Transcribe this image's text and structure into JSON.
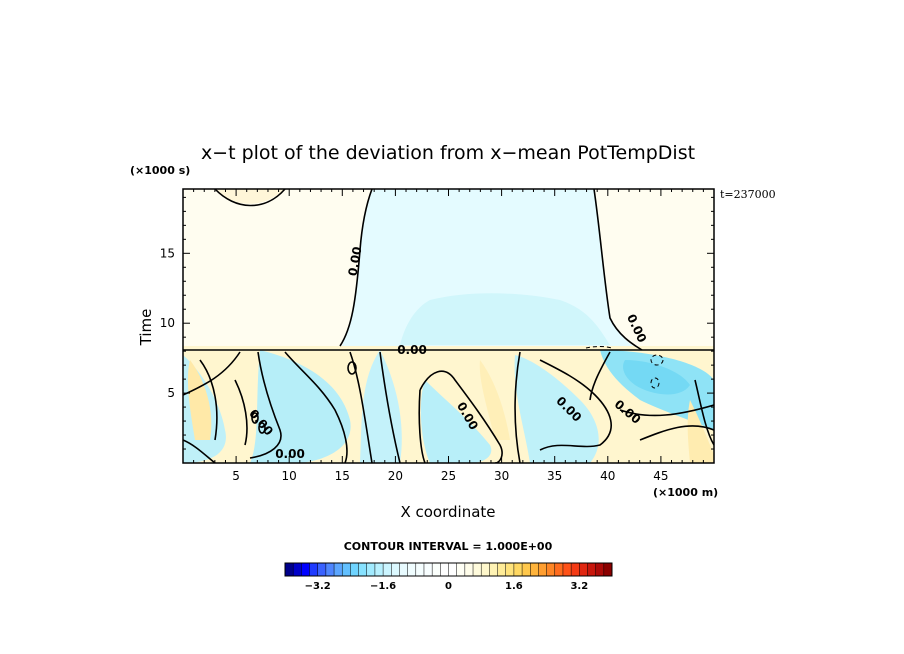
{
  "chart_data": {
    "type": "heatmap",
    "title": "x−t plot of the deviation from x−mean PotTempDist",
    "xlabel": "X coordinate",
    "ylabel": "Time",
    "x_unit": "(×1000 m)",
    "y_unit": "(×1000 s)",
    "time_stamp": "t=237000",
    "xlim": [
      0,
      50
    ],
    "ylim": [
      0,
      19.6
    ],
    "x_ticks": [
      5,
      10,
      15,
      20,
      25,
      30,
      35,
      40,
      45
    ],
    "y_ticks": [
      5,
      10,
      15
    ],
    "contour_interval_text": "CONTOUR INTERVAL = 1.000E+00",
    "contour_label": "0.00",
    "colorbar": {
      "range": [
        -4,
        4
      ],
      "n_levels": 40,
      "tick_values": [
        -3.2,
        -1.6,
        0,
        1.6,
        3.2
      ],
      "tick_labels": [
        "−3.2",
        "−1.6",
        "0",
        "1.6",
        "3.2"
      ],
      "colors": [
        "#00008b",
        "#0000c8",
        "#0000ff",
        "#1f3bff",
        "#3a62ff",
        "#4f86ff",
        "#5ca6ff",
        "#62c0ff",
        "#6fd4ff",
        "#87e2ff",
        "#a2ebff",
        "#b8f1ff",
        "#cbf5ff",
        "#dcf9ff",
        "#e8fbff",
        "#f0fdff",
        "#f5feff",
        "#f8feff",
        "#fbfffc",
        "#ffffff",
        "#ffffff",
        "#fffff5",
        "#fffdea",
        "#fffbdc",
        "#fff8cc",
        "#fff3b4",
        "#ffec98",
        "#ffe37c",
        "#ffd862",
        "#ffc84c",
        "#ffb43c",
        "#ff9e30",
        "#ff8626",
        "#ff6c1e",
        "#ff5218",
        "#f43a14",
        "#e02610",
        "#c8160c",
        "#ac0a08",
        "#8b0000"
      ]
    },
    "regions": [
      {
        "value": 0.25,
        "desc": "upper-left warm"
      },
      {
        "value": -0.45,
        "desc": "upper-center cool"
      },
      {
        "value": 0.2,
        "desc": "upper-right warm"
      },
      {
        "value": 0.5,
        "desc": "lower band mixed"
      }
    ]
  }
}
